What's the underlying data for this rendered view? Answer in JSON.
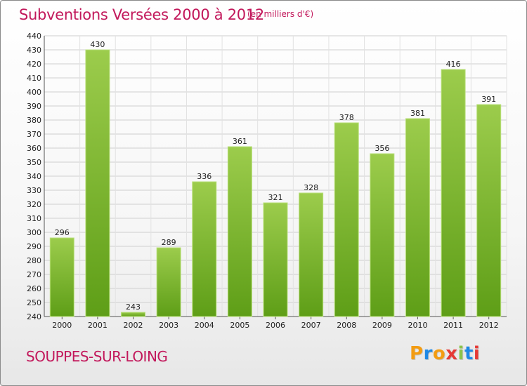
{
  "header": {
    "title": "Subventions Versées 2000 à 2012",
    "unit": "(en milliers d'€)"
  },
  "footer": {
    "commune": "SOUPPES-SUR-LOING",
    "brand": "Proxiti"
  },
  "colors": {
    "title": "#c2185b",
    "bar_top": "#9ccc4c",
    "bar_bottom": "#5e9e17",
    "grid": "#cfcfcf",
    "brand_letters": [
      "#f39c12",
      "#1e88e5",
      "#f39c12",
      "#e53935",
      "#8bc34a",
      "#1e88e5",
      "#e53935"
    ]
  },
  "chart_data": {
    "type": "bar",
    "title": "Subventions Versées 2000 à 2012",
    "subtitle": "(en milliers d'€)",
    "categories": [
      "2000",
      "2001",
      "2002",
      "2003",
      "2004",
      "2005",
      "2006",
      "2007",
      "2008",
      "2009",
      "2010",
      "2011",
      "2012"
    ],
    "values": [
      296,
      430,
      243,
      289,
      336,
      361,
      321,
      328,
      378,
      356,
      381,
      416,
      391
    ],
    "ylim": [
      240,
      440
    ],
    "ytick_step": 10,
    "grid": true,
    "xlabel": "",
    "ylabel": ""
  }
}
